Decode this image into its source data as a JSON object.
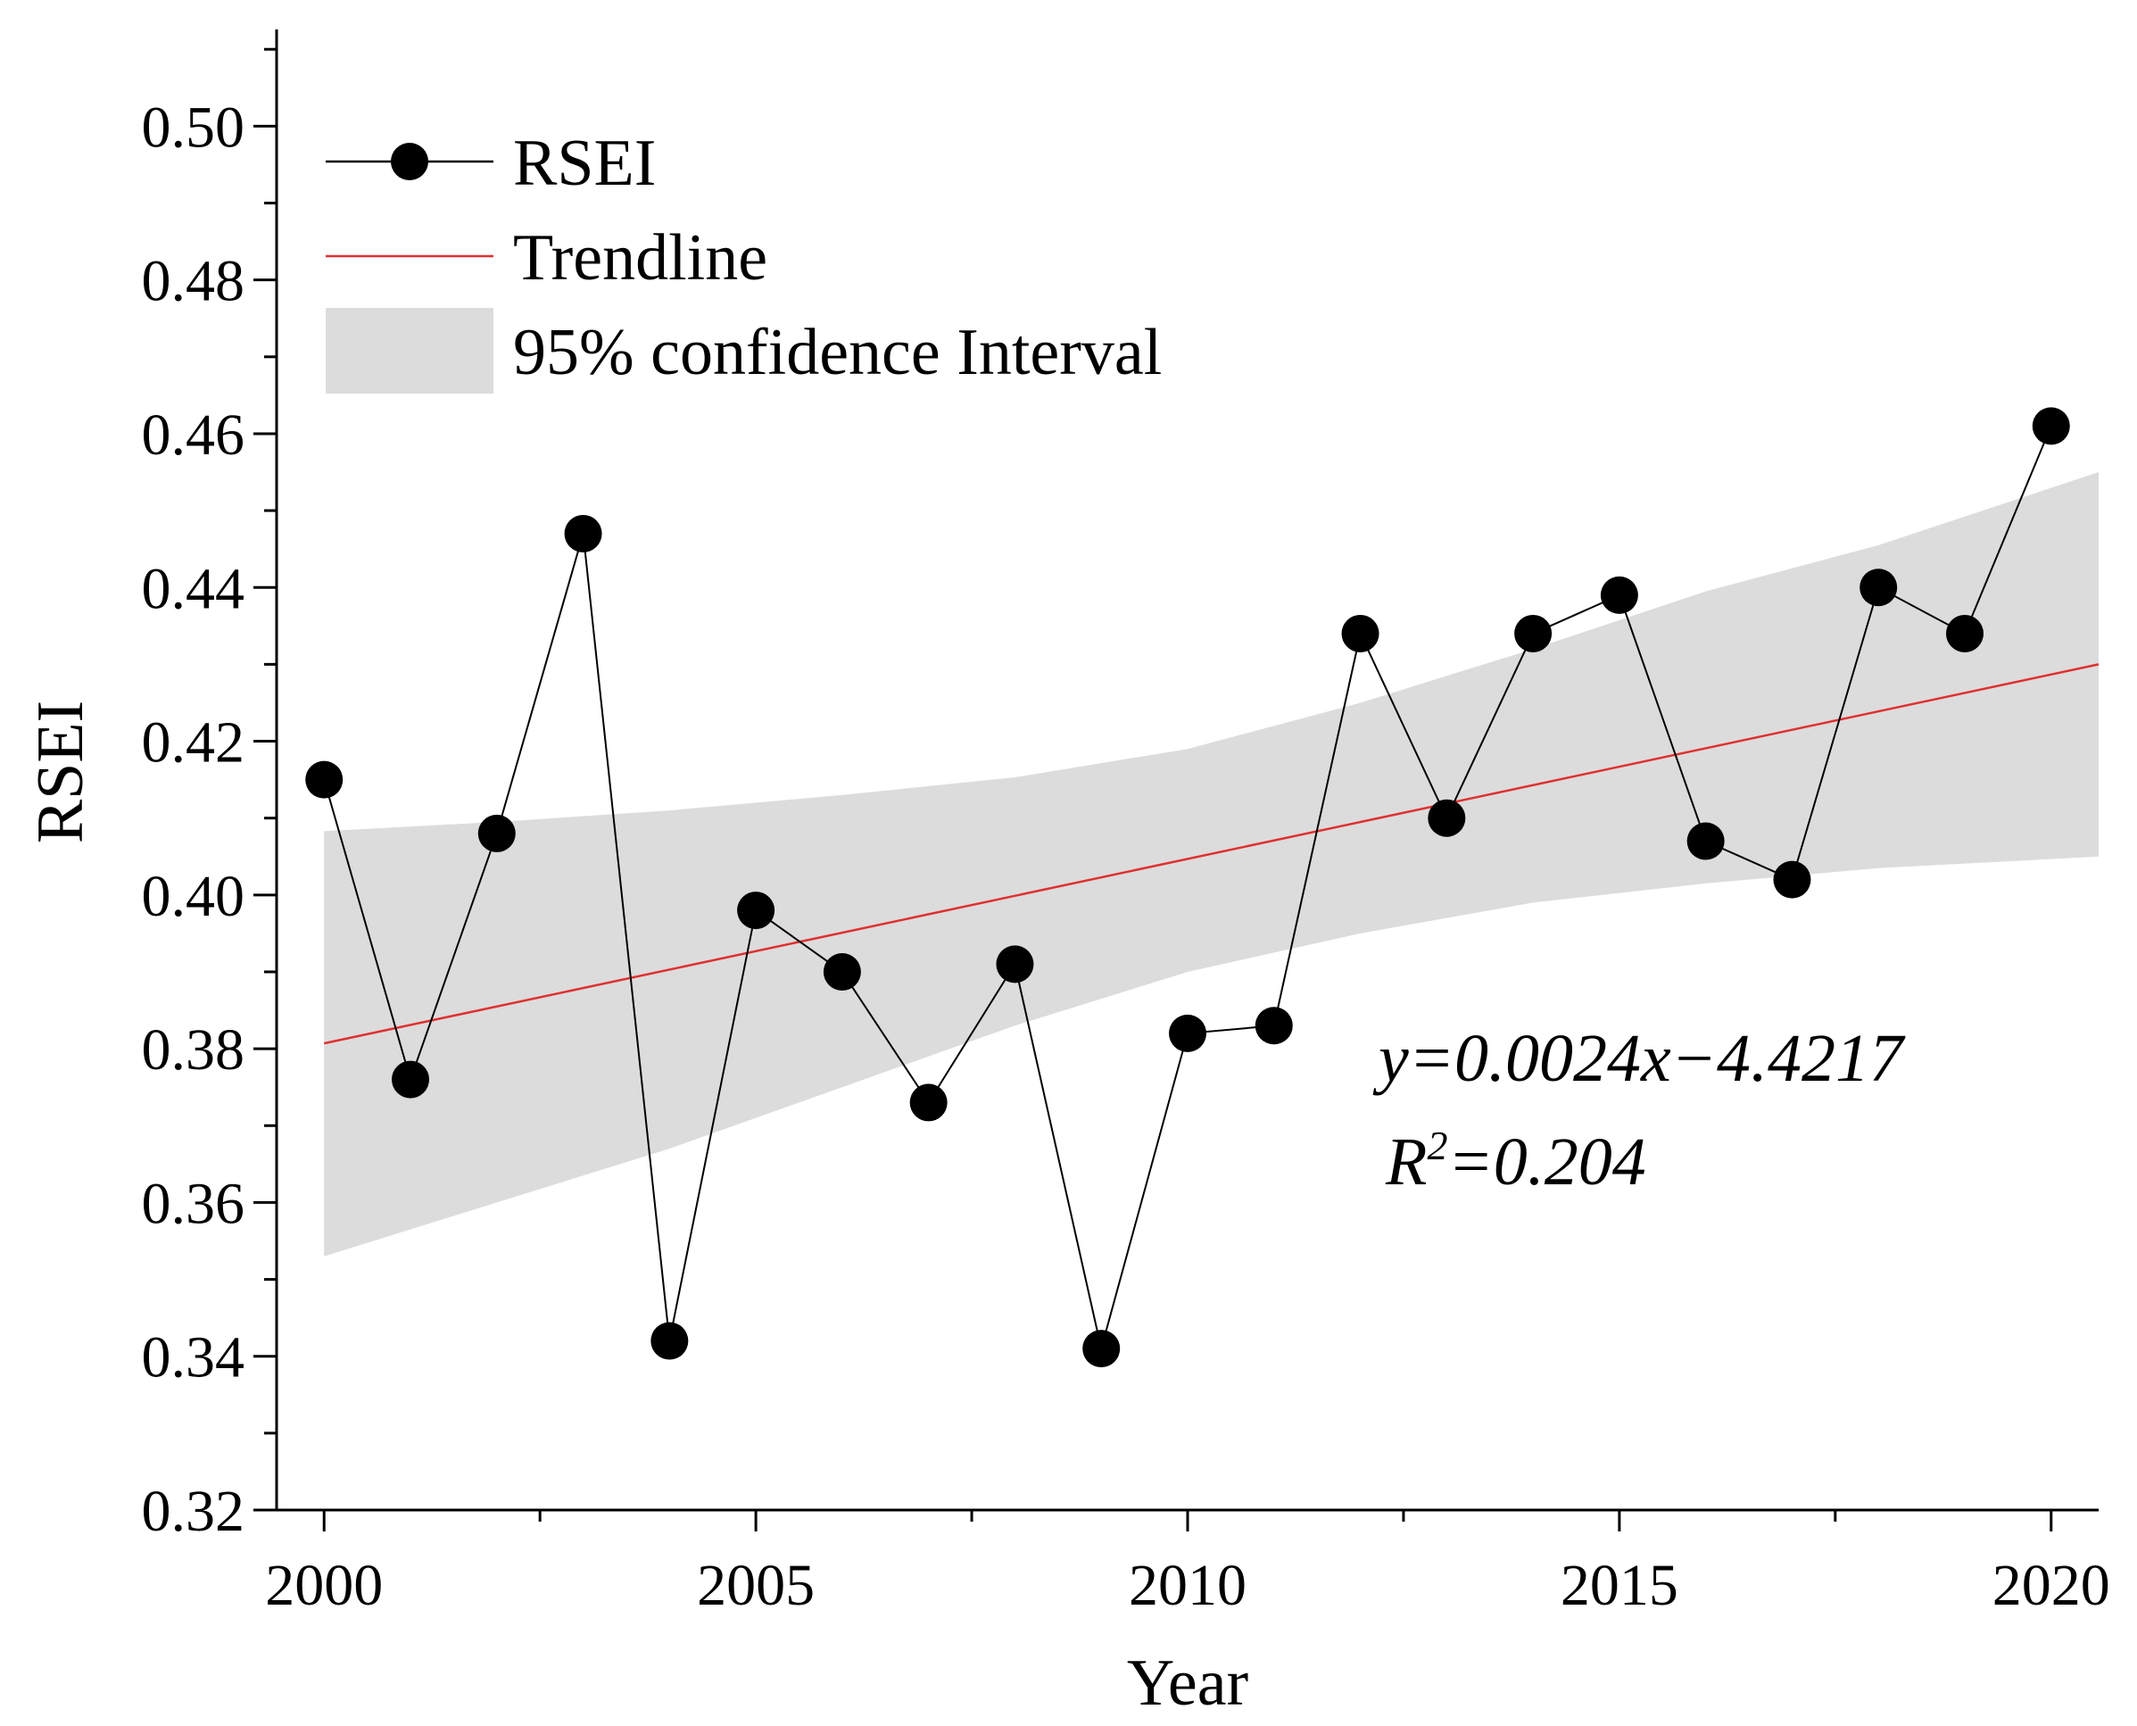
{
  "chart_data": {
    "type": "line",
    "title": "",
    "xlabel": "Year",
    "ylabel": "RSEI",
    "xlim": [
      1999.45,
      2020.55
    ],
    "ylim": [
      0.32,
      0.512
    ],
    "x_ticks": [
      2000,
      2005,
      2010,
      2015,
      2020
    ],
    "x_tick_labels": [
      "2000",
      "2005",
      "2010",
      "2015",
      "2020"
    ],
    "y_ticks": [
      0.32,
      0.34,
      0.36,
      0.38,
      0.4,
      0.42,
      0.44,
      0.46,
      0.48,
      0.5
    ],
    "y_tick_labels": [
      "0.32",
      "0.34",
      "0.36",
      "0.38",
      "0.40",
      "0.42",
      "0.44",
      "0.46",
      "0.48",
      "0.50"
    ],
    "grid": false,
    "legend_position": "top-left",
    "legend": {
      "entries": [
        "RSEI",
        "Trendline",
        "95% confidence Interval"
      ]
    },
    "series": [
      {
        "name": "RSEI",
        "x": [
          2000,
          2001,
          2002,
          2003,
          2004,
          2005,
          2006,
          2007,
          2008,
          2009,
          2010,
          2011,
          2012,
          2013,
          2014,
          2015,
          2016,
          2017,
          2018,
          2019,
          2020
        ],
        "values": [
          0.415,
          0.376,
          0.408,
          0.447,
          0.342,
          0.398,
          0.39,
          0.373,
          0.391,
          0.341,
          0.382,
          0.383,
          0.434,
          0.41,
          0.434,
          0.439,
          0.407,
          0.402,
          0.44,
          0.434,
          0.461
        ]
      }
    ],
    "trendline": {
      "name": "Trendline",
      "x": [
        2000,
        2020.55
      ],
      "values": [
        0.3807,
        0.43
      ]
    },
    "confidence_band": {
      "name": "95% confidence Interval",
      "x": [
        2000,
        2002,
        2004,
        2006,
        2008,
        2010,
        2012,
        2014,
        2016,
        2018,
        2020.55
      ],
      "upper": [
        0.4083,
        0.4095,
        0.411,
        0.413,
        0.4153,
        0.419,
        0.425,
        0.432,
        0.4395,
        0.4455,
        0.455
      ],
      "lower": [
        0.353,
        0.36,
        0.367,
        0.375,
        0.383,
        0.39,
        0.395,
        0.399,
        0.4015,
        0.4035,
        0.405
      ]
    },
    "annotations": {
      "equation": "y=0.0024x−4.4217",
      "r2_prefix": "R",
      "r2_exp": "2",
      "r2_value": "=0.204"
    },
    "colors": {
      "marker": "#000000",
      "line": "#000000",
      "trendline": "#e03030",
      "band": "#dcdcdc",
      "axis": "#000000"
    }
  }
}
